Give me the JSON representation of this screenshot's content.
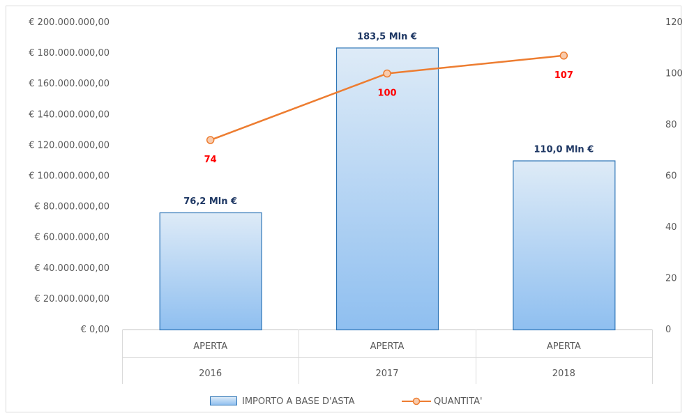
{
  "chart_data": {
    "type": "bar",
    "categories": [
      {
        "level1": "APERTA",
        "level2": "2016"
      },
      {
        "level1": "APERTA",
        "level2": "2017"
      },
      {
        "level1": "APERTA",
        "level2": "2018"
      }
    ],
    "series": [
      {
        "name": "IMPORTO A BASE D'ASTA",
        "type": "bar",
        "axis": "left",
        "values": [
          76200000,
          183500000,
          110000000
        ],
        "labels": [
          "76,2 Mln €",
          "183,5 Mln €",
          "110,0 Mln €"
        ],
        "color": "#5b9bd5"
      },
      {
        "name": "QUANTITA'",
        "type": "line",
        "axis": "right",
        "values": [
          74,
          100,
          107
        ],
        "labels": [
          "74",
          "100",
          "107"
        ],
        "color": "#ed7d31"
      }
    ],
    "left_axis": {
      "ylim": [
        0,
        200000000
      ],
      "ticks": [
        "€ 0,00",
        "€ 20.000.000,00",
        "€ 40.000.000,00",
        "€ 60.000.000,00",
        "€ 80.000.000,00",
        "€ 100.000.000,00",
        "€ 120.000.000,00",
        "€ 140.000.000,00",
        "€ 160.000.000,00",
        "€ 180.000.000,00",
        "€ 200.000.000,00"
      ]
    },
    "right_axis": {
      "ylim": [
        0,
        120
      ],
      "ticks": [
        "0",
        "20",
        "40",
        "60",
        "80",
        "100",
        "120"
      ]
    },
    "grid": false,
    "legend_position": "bottom"
  }
}
